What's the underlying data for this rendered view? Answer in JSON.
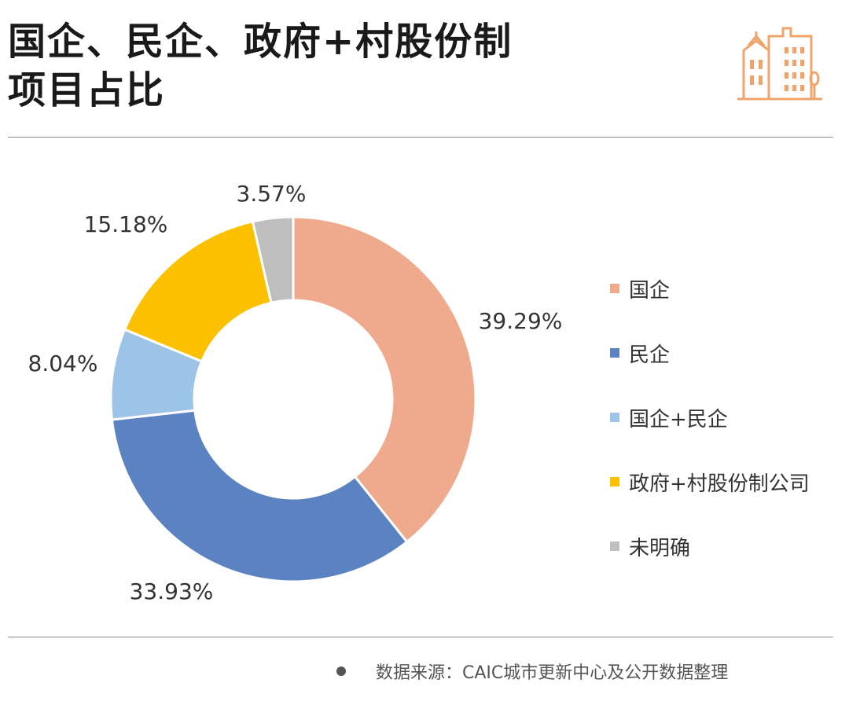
{
  "title": {
    "line1": "国企、民企、政府+村股份制",
    "line2": "项目占比"
  },
  "logo_icon": "city-buildings-icon",
  "chart_data": {
    "type": "pie",
    "variant": "donut",
    "categories": [
      "国企",
      "民企",
      "国企+民企",
      "政府+村股份制公司",
      "未明确"
    ],
    "values": [
      39.29,
      33.93,
      8.04,
      15.18,
      3.57
    ],
    "labels": [
      "39.29%",
      "33.93%",
      "8.04%",
      "15.18%",
      "3.57%"
    ],
    "colors": [
      "#EFAA8D",
      "#5B83C1",
      "#9DC3E6",
      "#FBC000",
      "#BFBFBF"
    ],
    "title": "",
    "legend_position": "right"
  },
  "source": "数据来源：CAIC城市更新中心及公开数据整理"
}
